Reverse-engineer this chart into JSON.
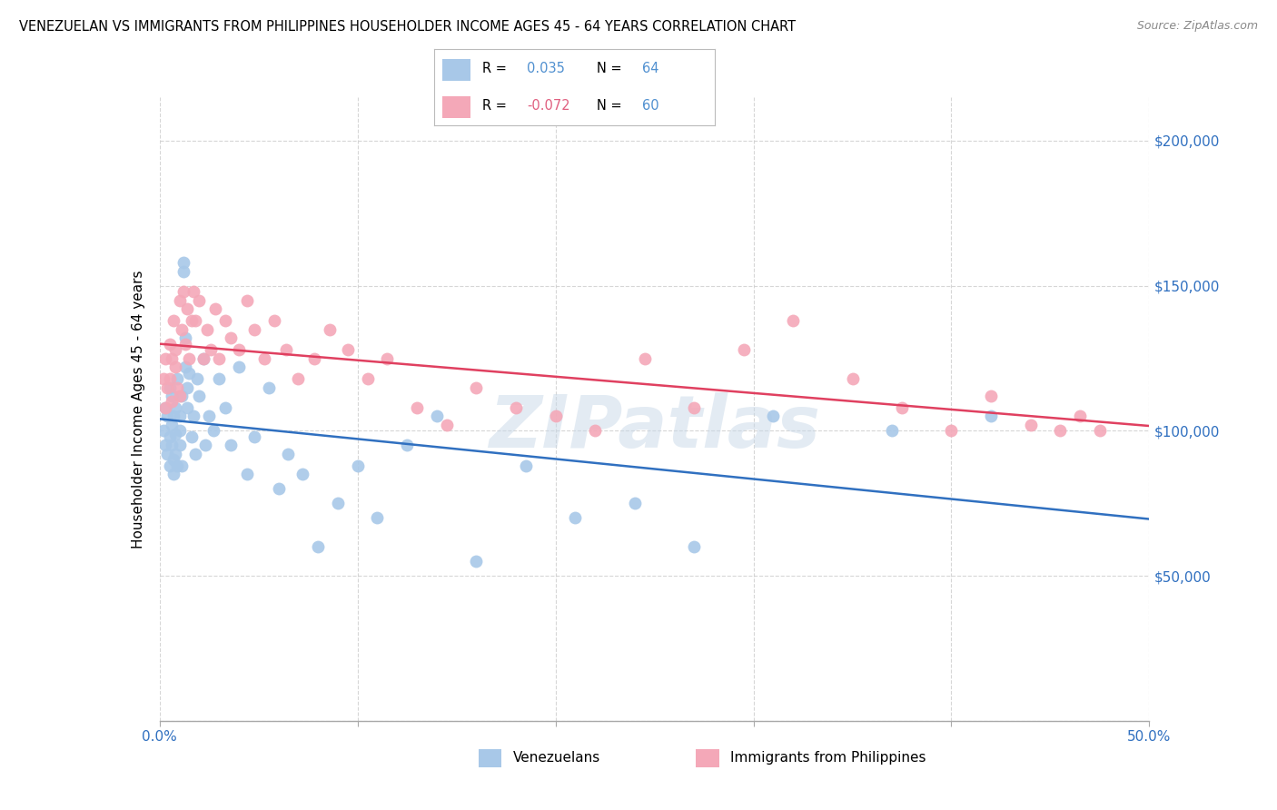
{
  "title": "VENEZUELAN VS IMMIGRANTS FROM PHILIPPINES HOUSEHOLDER INCOME AGES 45 - 64 YEARS CORRELATION CHART",
  "source": "Source: ZipAtlas.com",
  "ylabel": "Householder Income Ages 45 - 64 years",
  "yticks": [
    0,
    50000,
    100000,
    150000,
    200000
  ],
  "xmin": 0.0,
  "xmax": 0.5,
  "ymin": 0,
  "ymax": 215000,
  "watermark": "ZIPatlas",
  "blue_color": "#a8c8e8",
  "pink_color": "#f4a8b8",
  "blue_line_color": "#3070c0",
  "pink_line_color": "#e04060",
  "legend_blue_color": "#5090d0",
  "legend_pink_color": "#e06080",
  "venezuelans_label": "Venezuelans",
  "philippines_label": "Immigrants from Philippines",
  "venezuelans_R": 0.035,
  "venezuelans_N": 64,
  "philippines_R": -0.072,
  "philippines_N": 60,
  "venezuelans_x": [
    0.002,
    0.003,
    0.003,
    0.004,
    0.004,
    0.005,
    0.005,
    0.005,
    0.006,
    0.006,
    0.006,
    0.007,
    0.007,
    0.007,
    0.008,
    0.008,
    0.008,
    0.009,
    0.009,
    0.01,
    0.01,
    0.01,
    0.011,
    0.011,
    0.012,
    0.012,
    0.013,
    0.013,
    0.014,
    0.014,
    0.015,
    0.016,
    0.017,
    0.018,
    0.019,
    0.02,
    0.022,
    0.023,
    0.025,
    0.027,
    0.03,
    0.033,
    0.036,
    0.04,
    0.044,
    0.048,
    0.055,
    0.06,
    0.065,
    0.072,
    0.08,
    0.09,
    0.1,
    0.11,
    0.125,
    0.14,
    0.16,
    0.185,
    0.21,
    0.24,
    0.27,
    0.31,
    0.37,
    0.42
  ],
  "venezuelans_y": [
    100000,
    95000,
    108000,
    92000,
    105000,
    98000,
    88000,
    115000,
    102000,
    95000,
    112000,
    90000,
    105000,
    85000,
    99000,
    108000,
    92000,
    88000,
    118000,
    105000,
    95000,
    100000,
    112000,
    88000,
    155000,
    158000,
    132000,
    122000,
    115000,
    108000,
    120000,
    98000,
    105000,
    92000,
    118000,
    112000,
    125000,
    95000,
    105000,
    100000,
    118000,
    108000,
    95000,
    122000,
    85000,
    98000,
    115000,
    80000,
    92000,
    85000,
    60000,
    75000,
    88000,
    70000,
    95000,
    105000,
    55000,
    88000,
    70000,
    75000,
    60000,
    105000,
    100000,
    105000
  ],
  "philippines_x": [
    0.002,
    0.003,
    0.003,
    0.004,
    0.005,
    0.005,
    0.006,
    0.006,
    0.007,
    0.008,
    0.008,
    0.009,
    0.01,
    0.01,
    0.011,
    0.012,
    0.013,
    0.014,
    0.015,
    0.016,
    0.017,
    0.018,
    0.02,
    0.022,
    0.024,
    0.026,
    0.028,
    0.03,
    0.033,
    0.036,
    0.04,
    0.044,
    0.048,
    0.053,
    0.058,
    0.064,
    0.07,
    0.078,
    0.086,
    0.095,
    0.105,
    0.115,
    0.13,
    0.145,
    0.16,
    0.18,
    0.2,
    0.22,
    0.245,
    0.27,
    0.295,
    0.32,
    0.35,
    0.375,
    0.4,
    0.42,
    0.44,
    0.455,
    0.465,
    0.475
  ],
  "philippines_y": [
    118000,
    108000,
    125000,
    115000,
    130000,
    118000,
    110000,
    125000,
    138000,
    122000,
    128000,
    115000,
    145000,
    112000,
    135000,
    148000,
    130000,
    142000,
    125000,
    138000,
    148000,
    138000,
    145000,
    125000,
    135000,
    128000,
    142000,
    125000,
    138000,
    132000,
    128000,
    145000,
    135000,
    125000,
    138000,
    128000,
    118000,
    125000,
    135000,
    128000,
    118000,
    125000,
    108000,
    102000,
    115000,
    108000,
    105000,
    100000,
    125000,
    108000,
    128000,
    138000,
    118000,
    108000,
    100000,
    112000,
    102000,
    100000,
    105000,
    100000
  ]
}
